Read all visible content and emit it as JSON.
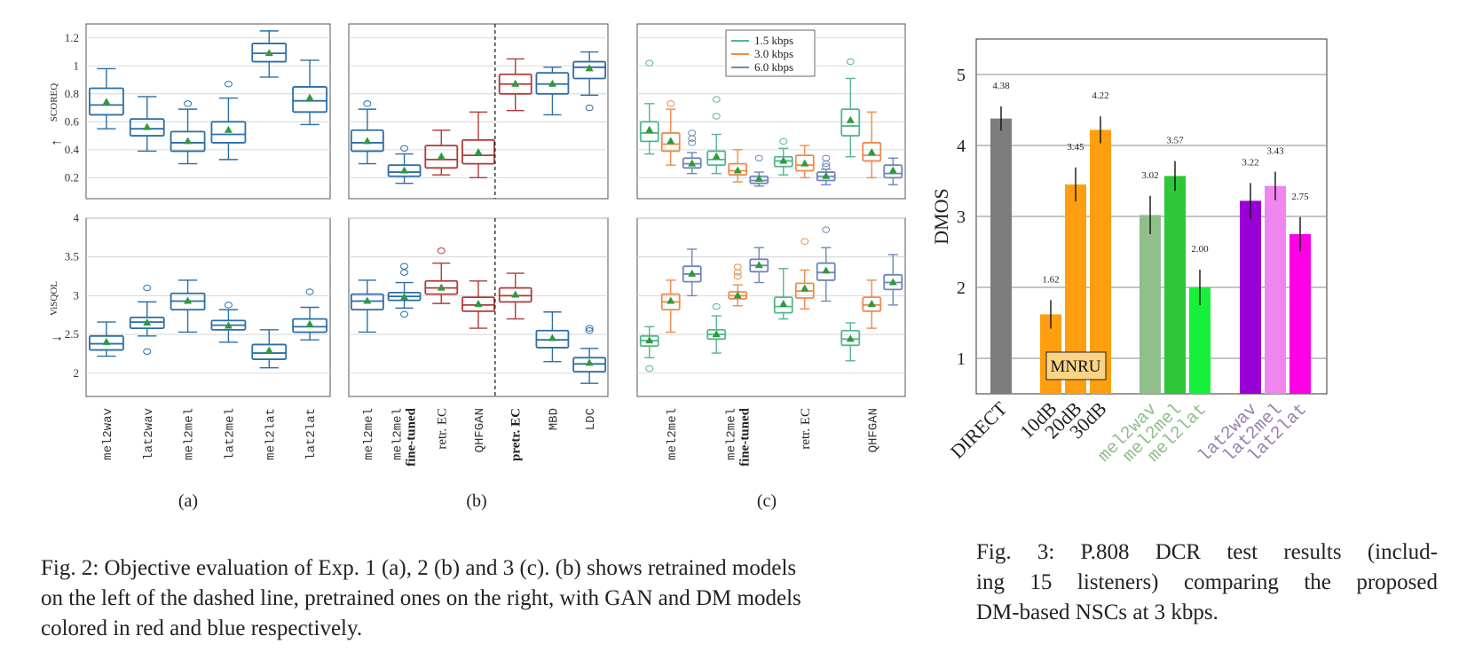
{
  "figure2": {
    "caption": "Fig. 2: Objective evaluation of Exp. 1 (a), 2 (b) and 3 (c). (b) shows retrained models on the left of the dashed line, pretrained ones on the right, with GAN and DM models colored in red and blue respectively.",
    "caption_lines": [
      "Fig. 2: Objective evaluation of Exp. 1 (a), 2 (b) and 3 (c). (b) shows retrained models",
      "on the left of the dashed line, pretrained ones on the right, with GAN and DM models",
      "colored in red and blue respectively."
    ],
    "panel_labels": [
      "(a)",
      "(b)",
      "(c)"
    ],
    "colors": {
      "dm_blue": "#2e6da4",
      "gan_red": "#b23a3a",
      "blue_a": "#2a6fa8",
      "green_15": "#55b58c",
      "orange_30": "#ee8a4a",
      "purple_60": "#6f86b8",
      "mean_marker": "#2e9a3a"
    }
  },
  "chart_data": [
    {
      "type": "box",
      "panel": "(a)",
      "metric": "SCOREQ",
      "ylabel": "SCOREQ",
      "arrow": "←",
      "ylim": [
        0.05,
        1.3
      ],
      "yticks": [
        "0.2",
        "0.4",
        "0.6",
        "0.8",
        "1",
        "1.2"
      ],
      "categories": [
        "mel2wav",
        "lat2wav",
        "mel2mel",
        "lat2mel",
        "mel2lat",
        "lat2lat"
      ],
      "boxes": [
        {
          "low": 0.55,
          "q1": 0.65,
          "median": 0.72,
          "q3": 0.84,
          "high": 0.98,
          "mean": 0.74,
          "outliers": []
        },
        {
          "low": 0.39,
          "q1": 0.5,
          "median": 0.55,
          "q3": 0.62,
          "high": 0.78,
          "mean": 0.56,
          "outliers": []
        },
        {
          "low": 0.3,
          "q1": 0.39,
          "median": 0.45,
          "q3": 0.53,
          "high": 0.69,
          "mean": 0.46,
          "outliers": [
            0.73
          ]
        },
        {
          "low": 0.33,
          "q1": 0.45,
          "median": 0.51,
          "q3": 0.6,
          "high": 0.77,
          "mean": 0.54,
          "outliers": [
            0.87
          ]
        },
        {
          "low": 0.92,
          "q1": 1.03,
          "median": 1.09,
          "q3": 1.16,
          "high": 1.25,
          "mean": 1.09,
          "outliers": []
        },
        {
          "low": 0.58,
          "q1": 0.67,
          "median": 0.75,
          "q3": 0.85,
          "high": 1.04,
          "mean": 0.77,
          "outliers": []
        }
      ]
    },
    {
      "type": "box",
      "panel": "(a)",
      "metric": "ViSQOL",
      "ylabel": "ViSQOL",
      "arrow": "→",
      "ylim": [
        1.7,
        4.0
      ],
      "yticks": [
        "2",
        "2.5",
        "3",
        "3.5",
        "4"
      ],
      "categories": [
        "mel2wav",
        "lat2wav",
        "mel2mel",
        "lat2mel",
        "mel2lat",
        "lat2lat"
      ],
      "boxes": [
        {
          "low": 2.22,
          "q1": 2.3,
          "median": 2.38,
          "q3": 2.48,
          "high": 2.66,
          "mean": 2.4,
          "outliers": []
        },
        {
          "low": 2.48,
          "q1": 2.58,
          "median": 2.66,
          "q3": 2.72,
          "high": 2.92,
          "mean": 2.65,
          "outliers": [
            3.1,
            2.28
          ]
        },
        {
          "low": 2.53,
          "q1": 2.82,
          "median": 2.93,
          "q3": 3.03,
          "high": 3.2,
          "mean": 2.93,
          "outliers": []
        },
        {
          "low": 2.4,
          "q1": 2.56,
          "median": 2.62,
          "q3": 2.68,
          "high": 2.82,
          "mean": 2.61,
          "outliers": [
            2.88
          ]
        },
        {
          "low": 2.07,
          "q1": 2.18,
          "median": 2.26,
          "q3": 2.37,
          "high": 2.56,
          "mean": 2.29,
          "outliers": []
        },
        {
          "low": 2.43,
          "q1": 2.53,
          "median": 2.6,
          "q3": 2.7,
          "high": 2.85,
          "mean": 2.63,
          "outliers": [
            3.05
          ]
        }
      ]
    },
    {
      "type": "box",
      "panel": "(b)",
      "metric": "SCOREQ",
      "ylim": [
        0.05,
        1.3
      ],
      "categories": [
        "mel2mel",
        "mel2mel fine-tuned",
        "retr. EC",
        "QHFGAN",
        "pretr. EC",
        "MBD",
        "LDC"
      ],
      "category_lines": [
        [
          "mel2mel",
          ""
        ],
        [
          "mel2mel",
          "fine-tuned"
        ],
        [
          "retr. EC",
          ""
        ],
        [
          "QHFGAN",
          ""
        ],
        [
          "pretr. EC",
          ""
        ],
        [
          "MBD",
          ""
        ],
        [
          "LDC",
          ""
        ]
      ],
      "category_fonts": [
        "mono",
        "mono+bold",
        "serif",
        "mono",
        "bold",
        "mono",
        "mono"
      ],
      "family": [
        "dm",
        "dm",
        "gan",
        "gan",
        "gan",
        "dm",
        "dm"
      ],
      "divider_after": 4,
      "boxes": [
        {
          "low": 0.3,
          "q1": 0.39,
          "median": 0.45,
          "q3": 0.54,
          "high": 0.69,
          "mean": 0.46,
          "outliers": [
            0.73
          ]
        },
        {
          "low": 0.16,
          "q1": 0.21,
          "median": 0.24,
          "q3": 0.29,
          "high": 0.37,
          "mean": 0.25,
          "outliers": [
            0.41
          ]
        },
        {
          "low": 0.22,
          "q1": 0.27,
          "median": 0.33,
          "q3": 0.43,
          "high": 0.54,
          "mean": 0.35,
          "outliers": []
        },
        {
          "low": 0.2,
          "q1": 0.3,
          "median": 0.36,
          "q3": 0.47,
          "high": 0.67,
          "mean": 0.38,
          "outliers": []
        },
        {
          "low": 0.68,
          "q1": 0.8,
          "median": 0.87,
          "q3": 0.94,
          "high": 1.05,
          "mean": 0.87,
          "outliers": []
        },
        {
          "low": 0.65,
          "q1": 0.8,
          "median": 0.87,
          "q3": 0.95,
          "high": 0.99,
          "mean": 0.87,
          "outliers": []
        },
        {
          "low": 0.79,
          "q1": 0.91,
          "median": 0.99,
          "q3": 1.03,
          "high": 1.1,
          "mean": 0.98,
          "outliers": [
            0.7
          ]
        }
      ]
    },
    {
      "type": "box",
      "panel": "(b)",
      "metric": "ViSQOL",
      "ylim": [
        1.7,
        4.0
      ],
      "categories": [
        "mel2mel",
        "mel2mel fine-tuned",
        "retr. EC",
        "QHFGAN",
        "pretr. EC",
        "MBD",
        "LDC"
      ],
      "family": [
        "dm",
        "dm",
        "gan",
        "gan",
        "gan",
        "dm",
        "dm"
      ],
      "divider_after": 4,
      "boxes": [
        {
          "low": 2.53,
          "q1": 2.82,
          "median": 2.93,
          "q3": 3.02,
          "high": 3.2,
          "mean": 2.93,
          "outliers": []
        },
        {
          "low": 2.84,
          "q1": 2.94,
          "median": 2.99,
          "q3": 3.04,
          "high": 3.17,
          "mean": 2.98,
          "outliers": [
            3.38,
            3.3,
            2.76
          ]
        },
        {
          "low": 2.9,
          "q1": 3.02,
          "median": 3.1,
          "q3": 3.19,
          "high": 3.42,
          "mean": 3.1,
          "outliers": [
            3.58
          ]
        },
        {
          "low": 2.58,
          "q1": 2.8,
          "median": 2.88,
          "q3": 2.98,
          "high": 3.19,
          "mean": 2.89,
          "outliers": []
        },
        {
          "low": 2.7,
          "q1": 2.92,
          "median": 3.0,
          "q3": 3.1,
          "high": 3.29,
          "mean": 3.01,
          "outliers": []
        },
        {
          "low": 2.15,
          "q1": 2.33,
          "median": 2.43,
          "q3": 2.55,
          "high": 2.79,
          "mean": 2.45,
          "outliers": []
        },
        {
          "low": 1.87,
          "q1": 2.02,
          "median": 2.12,
          "q3": 2.2,
          "high": 2.32,
          "mean": 2.13,
          "outliers": [
            2.58,
            2.55
          ]
        }
      ]
    },
    {
      "type": "box",
      "panel": "(c)",
      "metric": "SCOREQ",
      "ylim": [
        0.05,
        1.3
      ],
      "categories": [
        "mel2mel",
        "mel2mel fine-tuned",
        "retr. EC",
        "QHFGAN"
      ],
      "legend": [
        "1.5 kbps",
        "3.0 kbps",
        "6.0 kbps"
      ],
      "legend_position": "top-right",
      "groups": [
        [
          {
            "low": 0.37,
            "q1": 0.46,
            "median": 0.52,
            "q3": 0.6,
            "high": 0.73,
            "mean": 0.54,
            "outliers": [
              1.02
            ]
          },
          {
            "low": 0.29,
            "q1": 0.39,
            "median": 0.44,
            "q3": 0.52,
            "high": 0.69,
            "mean": 0.46,
            "outliers": [
              0.73
            ]
          },
          {
            "low": 0.23,
            "q1": 0.27,
            "median": 0.3,
            "q3": 0.34,
            "high": 0.38,
            "mean": 0.3,
            "outliers": [
              0.52,
              0.48,
              0.45
            ]
          }
        ],
        [
          {
            "low": 0.23,
            "q1": 0.29,
            "median": 0.33,
            "q3": 0.39,
            "high": 0.51,
            "mean": 0.35,
            "outliers": [
              0.64,
              0.76
            ]
          },
          {
            "low": 0.17,
            "q1": 0.22,
            "median": 0.25,
            "q3": 0.3,
            "high": 0.4,
            "mean": 0.25,
            "outliers": []
          },
          {
            "low": 0.14,
            "q1": 0.16,
            "median": 0.18,
            "q3": 0.21,
            "high": 0.24,
            "mean": 0.19,
            "outliers": [
              0.34
            ]
          }
        ],
        [
          {
            "low": 0.22,
            "q1": 0.28,
            "median": 0.32,
            "q3": 0.35,
            "high": 0.41,
            "mean": 0.32,
            "outliers": [
              0.46
            ]
          },
          {
            "low": 0.2,
            "q1": 0.25,
            "median": 0.29,
            "q3": 0.36,
            "high": 0.43,
            "mean": 0.3,
            "outliers": []
          },
          {
            "low": 0.15,
            "q1": 0.18,
            "median": 0.21,
            "q3": 0.24,
            "high": 0.26,
            "mean": 0.21,
            "outliers": [
              0.34,
              0.3,
              0.28
            ]
          }
        ],
        [
          {
            "low": 0.35,
            "q1": 0.5,
            "median": 0.57,
            "q3": 0.69,
            "high": 0.91,
            "mean": 0.61,
            "outliers": [
              1.03
            ]
          },
          {
            "low": 0.2,
            "q1": 0.32,
            "median": 0.36,
            "q3": 0.45,
            "high": 0.67,
            "mean": 0.38,
            "outliers": []
          },
          {
            "low": 0.15,
            "q1": 0.2,
            "median": 0.23,
            "q3": 0.29,
            "high": 0.34,
            "mean": 0.25,
            "outliers": []
          }
        ]
      ]
    },
    {
      "type": "box",
      "panel": "(c)",
      "metric": "ViSQOL",
      "ylim": [
        1.7,
        4.0
      ],
      "categories": [
        "mel2mel",
        "mel2mel fine-tuned",
        "retr. EC",
        "QHFGAN"
      ],
      "groups": [
        [
          {
            "low": 2.2,
            "q1": 2.35,
            "median": 2.42,
            "q3": 2.48,
            "high": 2.6,
            "mean": 2.42,
            "outliers": [
              2.06
            ]
          },
          {
            "low": 2.53,
            "q1": 2.82,
            "median": 2.92,
            "q3": 3.02,
            "high": 3.2,
            "mean": 2.93,
            "outliers": []
          },
          {
            "low": 3.0,
            "q1": 3.18,
            "median": 3.28,
            "q3": 3.38,
            "high": 3.6,
            "mean": 3.28,
            "outliers": []
          }
        ],
        [
          {
            "low": 2.26,
            "q1": 2.44,
            "median": 2.5,
            "q3": 2.56,
            "high": 2.74,
            "mean": 2.5,
            "outliers": [
              2.86
            ]
          },
          {
            "low": 2.87,
            "q1": 2.96,
            "median": 3.0,
            "q3": 3.05,
            "high": 3.14,
            "mean": 3.0,
            "outliers": [
              3.37,
              3.3,
              3.25
            ]
          },
          {
            "low": 3.17,
            "q1": 3.31,
            "median": 3.39,
            "q3": 3.47,
            "high": 3.62,
            "mean": 3.39,
            "outliers": []
          }
        ],
        [
          {
            "low": 2.7,
            "q1": 2.78,
            "median": 2.86,
            "q3": 2.98,
            "high": 3.35,
            "mean": 2.89,
            "outliers": []
          },
          {
            "low": 2.83,
            "q1": 2.97,
            "median": 3.06,
            "q3": 3.16,
            "high": 3.33,
            "mean": 3.09,
            "outliers": [
              3.7
            ]
          },
          {
            "low": 2.93,
            "q1": 3.2,
            "median": 3.3,
            "q3": 3.42,
            "high": 3.62,
            "mean": 3.32,
            "outliers": [
              3.85
            ]
          }
        ],
        [
          {
            "low": 2.16,
            "q1": 2.36,
            "median": 2.44,
            "q3": 2.55,
            "high": 2.65,
            "mean": 2.44,
            "outliers": []
          },
          {
            "low": 2.58,
            "q1": 2.8,
            "median": 2.88,
            "q3": 2.98,
            "high": 3.2,
            "mean": 2.89,
            "outliers": []
          },
          {
            "low": 2.88,
            "q1": 3.08,
            "median": 3.17,
            "q3": 3.27,
            "high": 3.53,
            "mean": 3.17,
            "outliers": []
          }
        ]
      ]
    },
    {
      "type": "bar",
      "panel": "Fig. 3",
      "ylabel": "DMOS",
      "ylim": [
        0.5,
        5.5
      ],
      "yticks": [
        "1",
        "2",
        "3",
        "4",
        "5"
      ],
      "categories": [
        "DIRECT",
        "10dB",
        "20dB",
        "30dB",
        "mel2wav",
        "mel2mel",
        "mel2lat",
        "lat2wav",
        "lat2mel",
        "lat2lat"
      ],
      "category_fonts": [
        "serif",
        "serif",
        "serif",
        "serif",
        "mono",
        "mono",
        "mono",
        "mono",
        "mono",
        "mono"
      ],
      "values": [
        4.38,
        1.62,
        3.45,
        4.22,
        3.02,
        3.57,
        2.0,
        3.22,
        3.43,
        2.75
      ],
      "value_labels": [
        "4.38",
        "1.62",
        "3.45",
        "4.22",
        "3.02",
        "3.57",
        "2.00",
        "3.22",
        "3.43",
        "2.75"
      ],
      "errors": [
        0.17,
        0.2,
        0.24,
        0.19,
        0.27,
        0.21,
        0.25,
        0.25,
        0.2,
        0.24
      ],
      "colors": [
        "#7d7d7d",
        "#ff9f10",
        "#ff9f10",
        "#ff9f10",
        "#8fbf8a",
        "#2fc63a",
        "#17f03a",
        "#9900d6",
        "#ef86ef",
        "#ff00e6"
      ],
      "label_colors": [
        "#111111",
        "#111111",
        "#111111",
        "#111111",
        "#8fbf8a",
        "#8fbf8a",
        "#8fbf8a",
        "#9b7fb0",
        "#9b7fb0",
        "#9b7fb0"
      ],
      "annotation": "MNRU",
      "grid": true
    }
  ],
  "figure3": {
    "caption_lines": [
      "Fig. 3: P.808 DCR test results (includ-",
      "ing 15 listeners) comparing the proposed",
      "DM-based NSCs at 3 kbps."
    ]
  }
}
